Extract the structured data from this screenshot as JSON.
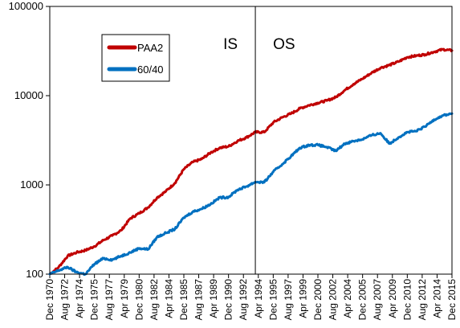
{
  "chart_data": {
    "type": "line",
    "title": "",
    "xlabel": "",
    "ylabel": "",
    "y_scale": "log",
    "ylim": [
      100,
      100000
    ],
    "y_ticks": [
      100,
      1000,
      10000,
      100000
    ],
    "y_tick_labels": [
      "100",
      "1000",
      "10000",
      "100000"
    ],
    "xlim": [
      "1970-12",
      "2015-12"
    ],
    "x_tick_labels": [
      "Dec 1970",
      "Aug 1972",
      "Apr 1974",
      "Dec 1975",
      "Aug 1977",
      "Apr 1979",
      "Dec 1980",
      "Aug 1982",
      "Apr 1984",
      "Dec 1985",
      "Aug 1987",
      "Apr 1989",
      "Dec 1990",
      "Aug 1992",
      "Apr 1994",
      "Dec 1995",
      "Aug 1997",
      "Apr 1999",
      "Dec 2000",
      "Aug 2002",
      "Apr 2004",
      "Dec 2005",
      "Aug 2007",
      "Apr 2009",
      "Dec 2010",
      "Aug 2012",
      "Apr 2014",
      "Dec 2015"
    ],
    "grid": false,
    "legend_position": "top-left",
    "divider": {
      "x": "1993-12",
      "left_label": "IS",
      "right_label": "OS"
    },
    "series": [
      {
        "name": "PAA2",
        "color": "#C00000",
        "points": [
          [
            "1970-12",
            100
          ],
          [
            "1971-12",
            120
          ],
          [
            "1972-12",
            160
          ],
          [
            "1973-12",
            175
          ],
          [
            "1974-12",
            185
          ],
          [
            "1975-12",
            205
          ],
          [
            "1976-12",
            240
          ],
          [
            "1977-12",
            270
          ],
          [
            "1978-12",
            310
          ],
          [
            "1979-12",
            420
          ],
          [
            "1980-12",
            480
          ],
          [
            "1981-12",
            560
          ],
          [
            "1982-12",
            720
          ],
          [
            "1983-12",
            850
          ],
          [
            "1984-12",
            1050
          ],
          [
            "1985-12",
            1500
          ],
          [
            "1986-12",
            1800
          ],
          [
            "1987-12",
            1950
          ],
          [
            "1988-12",
            2300
          ],
          [
            "1989-12",
            2600
          ],
          [
            "1990-12",
            2700
          ],
          [
            "1991-12",
            3100
          ],
          [
            "1992-12",
            3400
          ],
          [
            "1993-12",
            3900
          ],
          [
            "1994-12",
            3900
          ],
          [
            "1995-12",
            5000
          ],
          [
            "1996-12",
            5700
          ],
          [
            "1997-12",
            6300
          ],
          [
            "1998-12",
            7200
          ],
          [
            "1999-12",
            7800
          ],
          [
            "2000-12",
            8300
          ],
          [
            "2001-12",
            8800
          ],
          [
            "2002-12",
            9600
          ],
          [
            "2003-12",
            11500
          ],
          [
            "2004-12",
            13500
          ],
          [
            "2005-12",
            15500
          ],
          [
            "2006-12",
            18000
          ],
          [
            "2007-12",
            20500
          ],
          [
            "2008-12",
            22000
          ],
          [
            "2009-12",
            24000
          ],
          [
            "2010-12",
            27000
          ],
          [
            "2011-12",
            28000
          ],
          [
            "2012-12",
            29000
          ],
          [
            "2013-12",
            31000
          ],
          [
            "2014-12",
            33000
          ],
          [
            "2015-12",
            32000
          ]
        ]
      },
      {
        "name": "60/40",
        "color": "#0070C0",
        "points": [
          [
            "1970-12",
            100
          ],
          [
            "1971-12",
            110
          ],
          [
            "1972-12",
            120
          ],
          [
            "1973-12",
            105
          ],
          [
            "1974-12",
            100
          ],
          [
            "1975-12",
            130
          ],
          [
            "1976-12",
            150
          ],
          [
            "1977-12",
            145
          ],
          [
            "1978-12",
            160
          ],
          [
            "1979-12",
            175
          ],
          [
            "1980-12",
            195
          ],
          [
            "1981-12",
            190
          ],
          [
            "1982-12",
            260
          ],
          [
            "1983-12",
            290
          ],
          [
            "1984-12",
            320
          ],
          [
            "1985-12",
            430
          ],
          [
            "1986-12",
            500
          ],
          [
            "1987-12",
            540
          ],
          [
            "1988-12",
            610
          ],
          [
            "1989-12",
            720
          ],
          [
            "1990-12",
            730
          ],
          [
            "1991-12",
            880
          ],
          [
            "1992-12",
            960
          ],
          [
            "1993-12",
            1080
          ],
          [
            "1994-12",
            1070
          ],
          [
            "1995-12",
            1400
          ],
          [
            "1996-12",
            1700
          ],
          [
            "1997-12",
            2100
          ],
          [
            "1998-12",
            2600
          ],
          [
            "1999-12",
            2800
          ],
          [
            "2000-12",
            2800
          ],
          [
            "2001-12",
            2650
          ],
          [
            "2002-12",
            2400
          ],
          [
            "2003-12",
            2900
          ],
          [
            "2004-12",
            3100
          ],
          [
            "2005-12",
            3250
          ],
          [
            "2006-12",
            3600
          ],
          [
            "2007-12",
            3800
          ],
          [
            "2008-12",
            2900
          ],
          [
            "2009-12",
            3400
          ],
          [
            "2010-12",
            3900
          ],
          [
            "2011-12",
            4000
          ],
          [
            "2012-12",
            4500
          ],
          [
            "2013-12",
            5400
          ],
          [
            "2014-12",
            6000
          ],
          [
            "2015-12",
            6300
          ]
        ]
      }
    ]
  }
}
